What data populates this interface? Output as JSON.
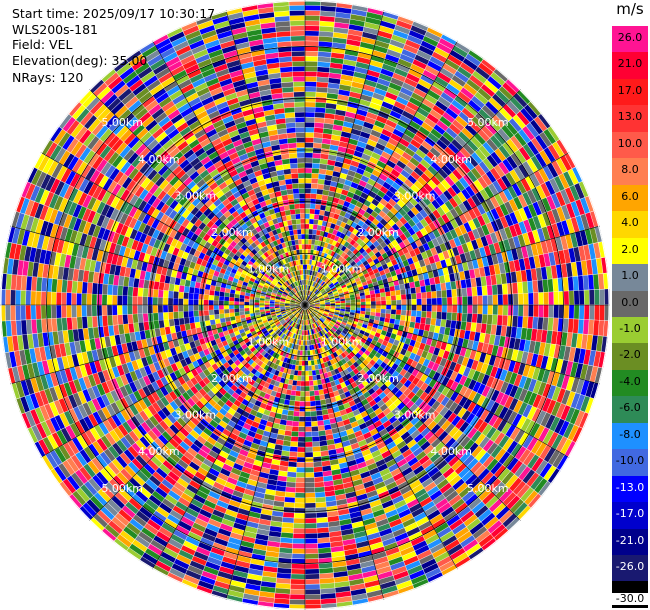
{
  "header": {
    "start_time": "Start time: 2025/09/17 10:30:17",
    "instrument": "WLS200s-181",
    "field": "Field: VEL",
    "elevation": "Elevation(deg): 35.00",
    "nrays": "NRays: 120"
  },
  "ppi": {
    "range_rings": [
      {
        "range_km": 1,
        "label": "1.00km"
      },
      {
        "range_km": 2,
        "label": "2.00km"
      },
      {
        "range_km": 3,
        "label": "3.00km"
      },
      {
        "range_km": 4,
        "label": "4.00km"
      },
      {
        "range_km": 5,
        "label": "5.00km"
      }
    ],
    "max_range_km": 5.9,
    "n_rays": 120,
    "n_gates": 60
  },
  "colorbar": {
    "unit": "m/s",
    "levels": [
      {
        "value": 26.0,
        "label": "26.0",
        "color": "#ff1493"
      },
      {
        "value": 21.0,
        "label": "21.0",
        "color": "#ff0033"
      },
      {
        "value": 17.0,
        "label": "17.0",
        "color": "#ff1a1a"
      },
      {
        "value": 13.0,
        "label": "13.0",
        "color": "#ff3333"
      },
      {
        "value": 10.0,
        "label": "10.0",
        "color": "#ff5a4a"
      },
      {
        "value": 8.0,
        "label": "8.0",
        "color": "#ff7f50"
      },
      {
        "value": 6.0,
        "label": "6.0",
        "color": "#ffa500"
      },
      {
        "value": 4.0,
        "label": "4.0",
        "color": "#ffd700"
      },
      {
        "value": 2.0,
        "label": "2.0",
        "color": "#ffff00"
      },
      {
        "value": 1.0,
        "label": "1.0",
        "color": "#778899"
      },
      {
        "value": 0.0,
        "label": "0.0",
        "color": "#696969"
      },
      {
        "value": -1.0,
        "label": "-1.0",
        "color": "#9acd32"
      },
      {
        "value": -2.0,
        "label": "-2.0",
        "color": "#6b8e23"
      },
      {
        "value": -4.0,
        "label": "-4.0",
        "color": "#228b22"
      },
      {
        "value": -6.0,
        "label": "-6.0",
        "color": "#2e8b57"
      },
      {
        "value": -8.0,
        "label": "-8.0",
        "color": "#1e90ff"
      },
      {
        "value": -10.0,
        "label": "-10.0",
        "color": "#4169e1"
      },
      {
        "value": -13.0,
        "label": "-13.0",
        "color": "#0000ff"
      },
      {
        "value": -17.0,
        "label": "-17.0",
        "color": "#0000cd"
      },
      {
        "value": -21.0,
        "label": "-21.0",
        "color": "#00008b"
      },
      {
        "value": -26.0,
        "label": "-26.0",
        "color": "#191970"
      },
      {
        "value": -30.0,
        "label": "-30.0",
        "color": "#000000"
      }
    ]
  }
}
